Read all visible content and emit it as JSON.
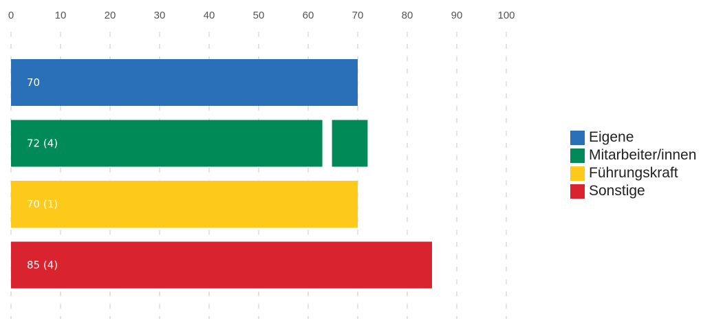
{
  "chart_data": {
    "type": "bar",
    "orientation": "horizontal",
    "xlim": [
      0,
      100
    ],
    "ticks": [
      "0",
      "10",
      "20",
      "30",
      "40",
      "50",
      "60",
      "70",
      "80",
      "90",
      "100"
    ],
    "grid": true,
    "legend_position": "right",
    "categories": [
      "Eigene",
      "Mitarbeiter/innen",
      "Führungskraft",
      "Sonstige"
    ],
    "values": [
      70,
      72,
      70,
      85
    ],
    "counts": [
      null,
      4,
      1,
      4
    ],
    "labels": [
      "70",
      "72 (4)",
      "70 (1)",
      "85 (4)"
    ],
    "colors": [
      "#2a70b9",
      "#008a57",
      "#fdc91b",
      "#d9232e"
    ],
    "marker": {
      "series_index": 1,
      "value": 63
    }
  },
  "legend": {
    "items": [
      {
        "label": "Eigene",
        "color": "#2a70b9"
      },
      {
        "label": "Mitarbeiter/innen",
        "color": "#008a57"
      },
      {
        "label": "Führungskraft",
        "color": "#fdc91b"
      },
      {
        "label": "Sonstige",
        "color": "#d9232e"
      }
    ]
  }
}
